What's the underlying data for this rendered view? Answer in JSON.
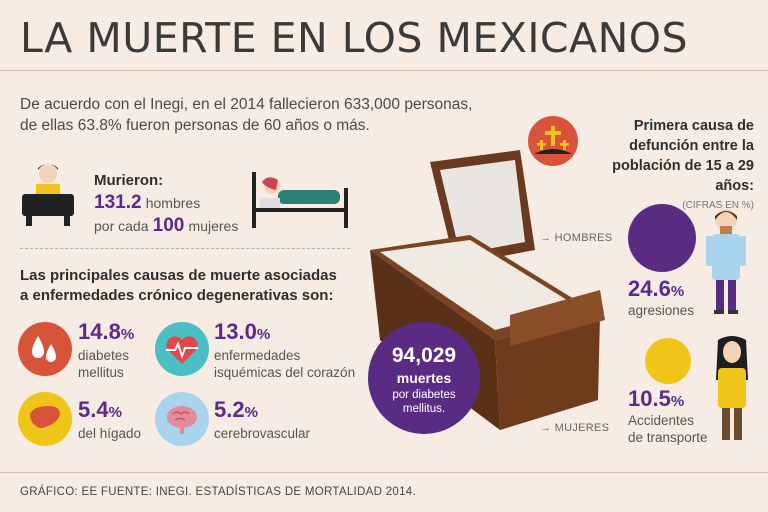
{
  "title": "LA MUERTE EN LOS MEXICANOS",
  "intro": {
    "line1": "De acuerdo con el Inegi, en el 2014 fallecieron 633,000 personas,",
    "line2": "de ellas 63.8% fueron personas de 60 años o más."
  },
  "murieron": {
    "label": "Murieron:",
    "men_value": "131.2",
    "men_label": "hombres",
    "per_label": "por cada",
    "women_value": "100",
    "women_label": "mujeres"
  },
  "causes": {
    "title_line1": "Las principales causas de muerte asociadas",
    "title_line2": "a enfermedades crónico degenerativas son:",
    "items": [
      {
        "value": "14.8",
        "unit": "%",
        "desc1": "diabetes",
        "desc2": "mellitus",
        "icon": "blood-drops-icon"
      },
      {
        "value": "13.0",
        "unit": "%",
        "desc1": "enfermedades",
        "desc2": "isquémicas del corazón",
        "icon": "heart-pulse-icon"
      },
      {
        "value": "5.4",
        "unit": "%",
        "desc1": "del hígado",
        "desc2": "",
        "icon": "liver-icon"
      },
      {
        "value": "5.2",
        "unit": "%",
        "desc1": "cerebrovascular",
        "desc2": "",
        "icon": "brain-icon"
      }
    ]
  },
  "diabetes_deaths": {
    "number": "94,029",
    "label": "muertes",
    "sub1": "por diabetes",
    "sub2": "mellitus."
  },
  "youth": {
    "title_line1": "Primera causa de",
    "title_line2": "defunción entre la",
    "title_line3": "población de 15 a 29",
    "title_line4": "años:",
    "note": "(CIFRAS EN %)",
    "men_label": "→ HOMBRES",
    "women_label": "→ MUJERES",
    "men_value": "24.6",
    "men_unit": "%",
    "men_desc": "agresiones",
    "women_value": "10.5",
    "women_unit": "%",
    "women_desc1": "Accidentes",
    "women_desc2": "de transporte"
  },
  "source": "GRÁFICO: EE  FUENTE: INEGI. ESTADÍSTICAS DE MORTALIDAD 2014.",
  "colors": {
    "background": "#f6ece4",
    "purple": "#5b2a8c",
    "red": "#d9533b",
    "teal": "#4bbfc4",
    "gold": "#f0c419",
    "light_blue": "#a9d4ee"
  }
}
